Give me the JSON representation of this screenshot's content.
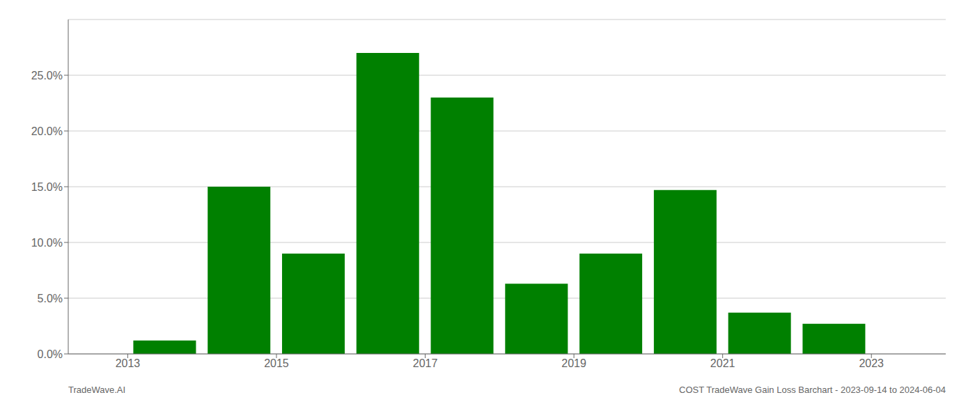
{
  "chart_data": {
    "type": "bar",
    "x": [
      2013.5,
      2014.5,
      2015.5,
      2016.5,
      2017.5,
      2018.5,
      2019.5,
      2020.5,
      2021.5,
      2022.5
    ],
    "values": [
      0.012,
      0.15,
      0.09,
      0.27,
      0.23,
      0.063,
      0.09,
      0.147,
      0.037,
      0.027
    ],
    "color": "#008000",
    "xlim": [
      2012.2,
      2024.0
    ],
    "xticks": [
      2013,
      2015,
      2017,
      2019,
      2021,
      2023
    ],
    "ylim": [
      0,
      0.3
    ],
    "yticks": [
      {
        "value": 0.0,
        "label": "0.0%"
      },
      {
        "value": 0.05,
        "label": "5.0%"
      },
      {
        "value": 0.1,
        "label": "10.0%"
      },
      {
        "value": 0.15,
        "label": "15.0%"
      },
      {
        "value": 0.2,
        "label": "20.0%"
      },
      {
        "value": 0.25,
        "label": "25.0%"
      }
    ],
    "grid": "y",
    "annotations": [
      "TradeWave.AI",
      "COST TradeWave Gain Loss Barchart - 2023-09-14 to 2024-06-04"
    ]
  }
}
